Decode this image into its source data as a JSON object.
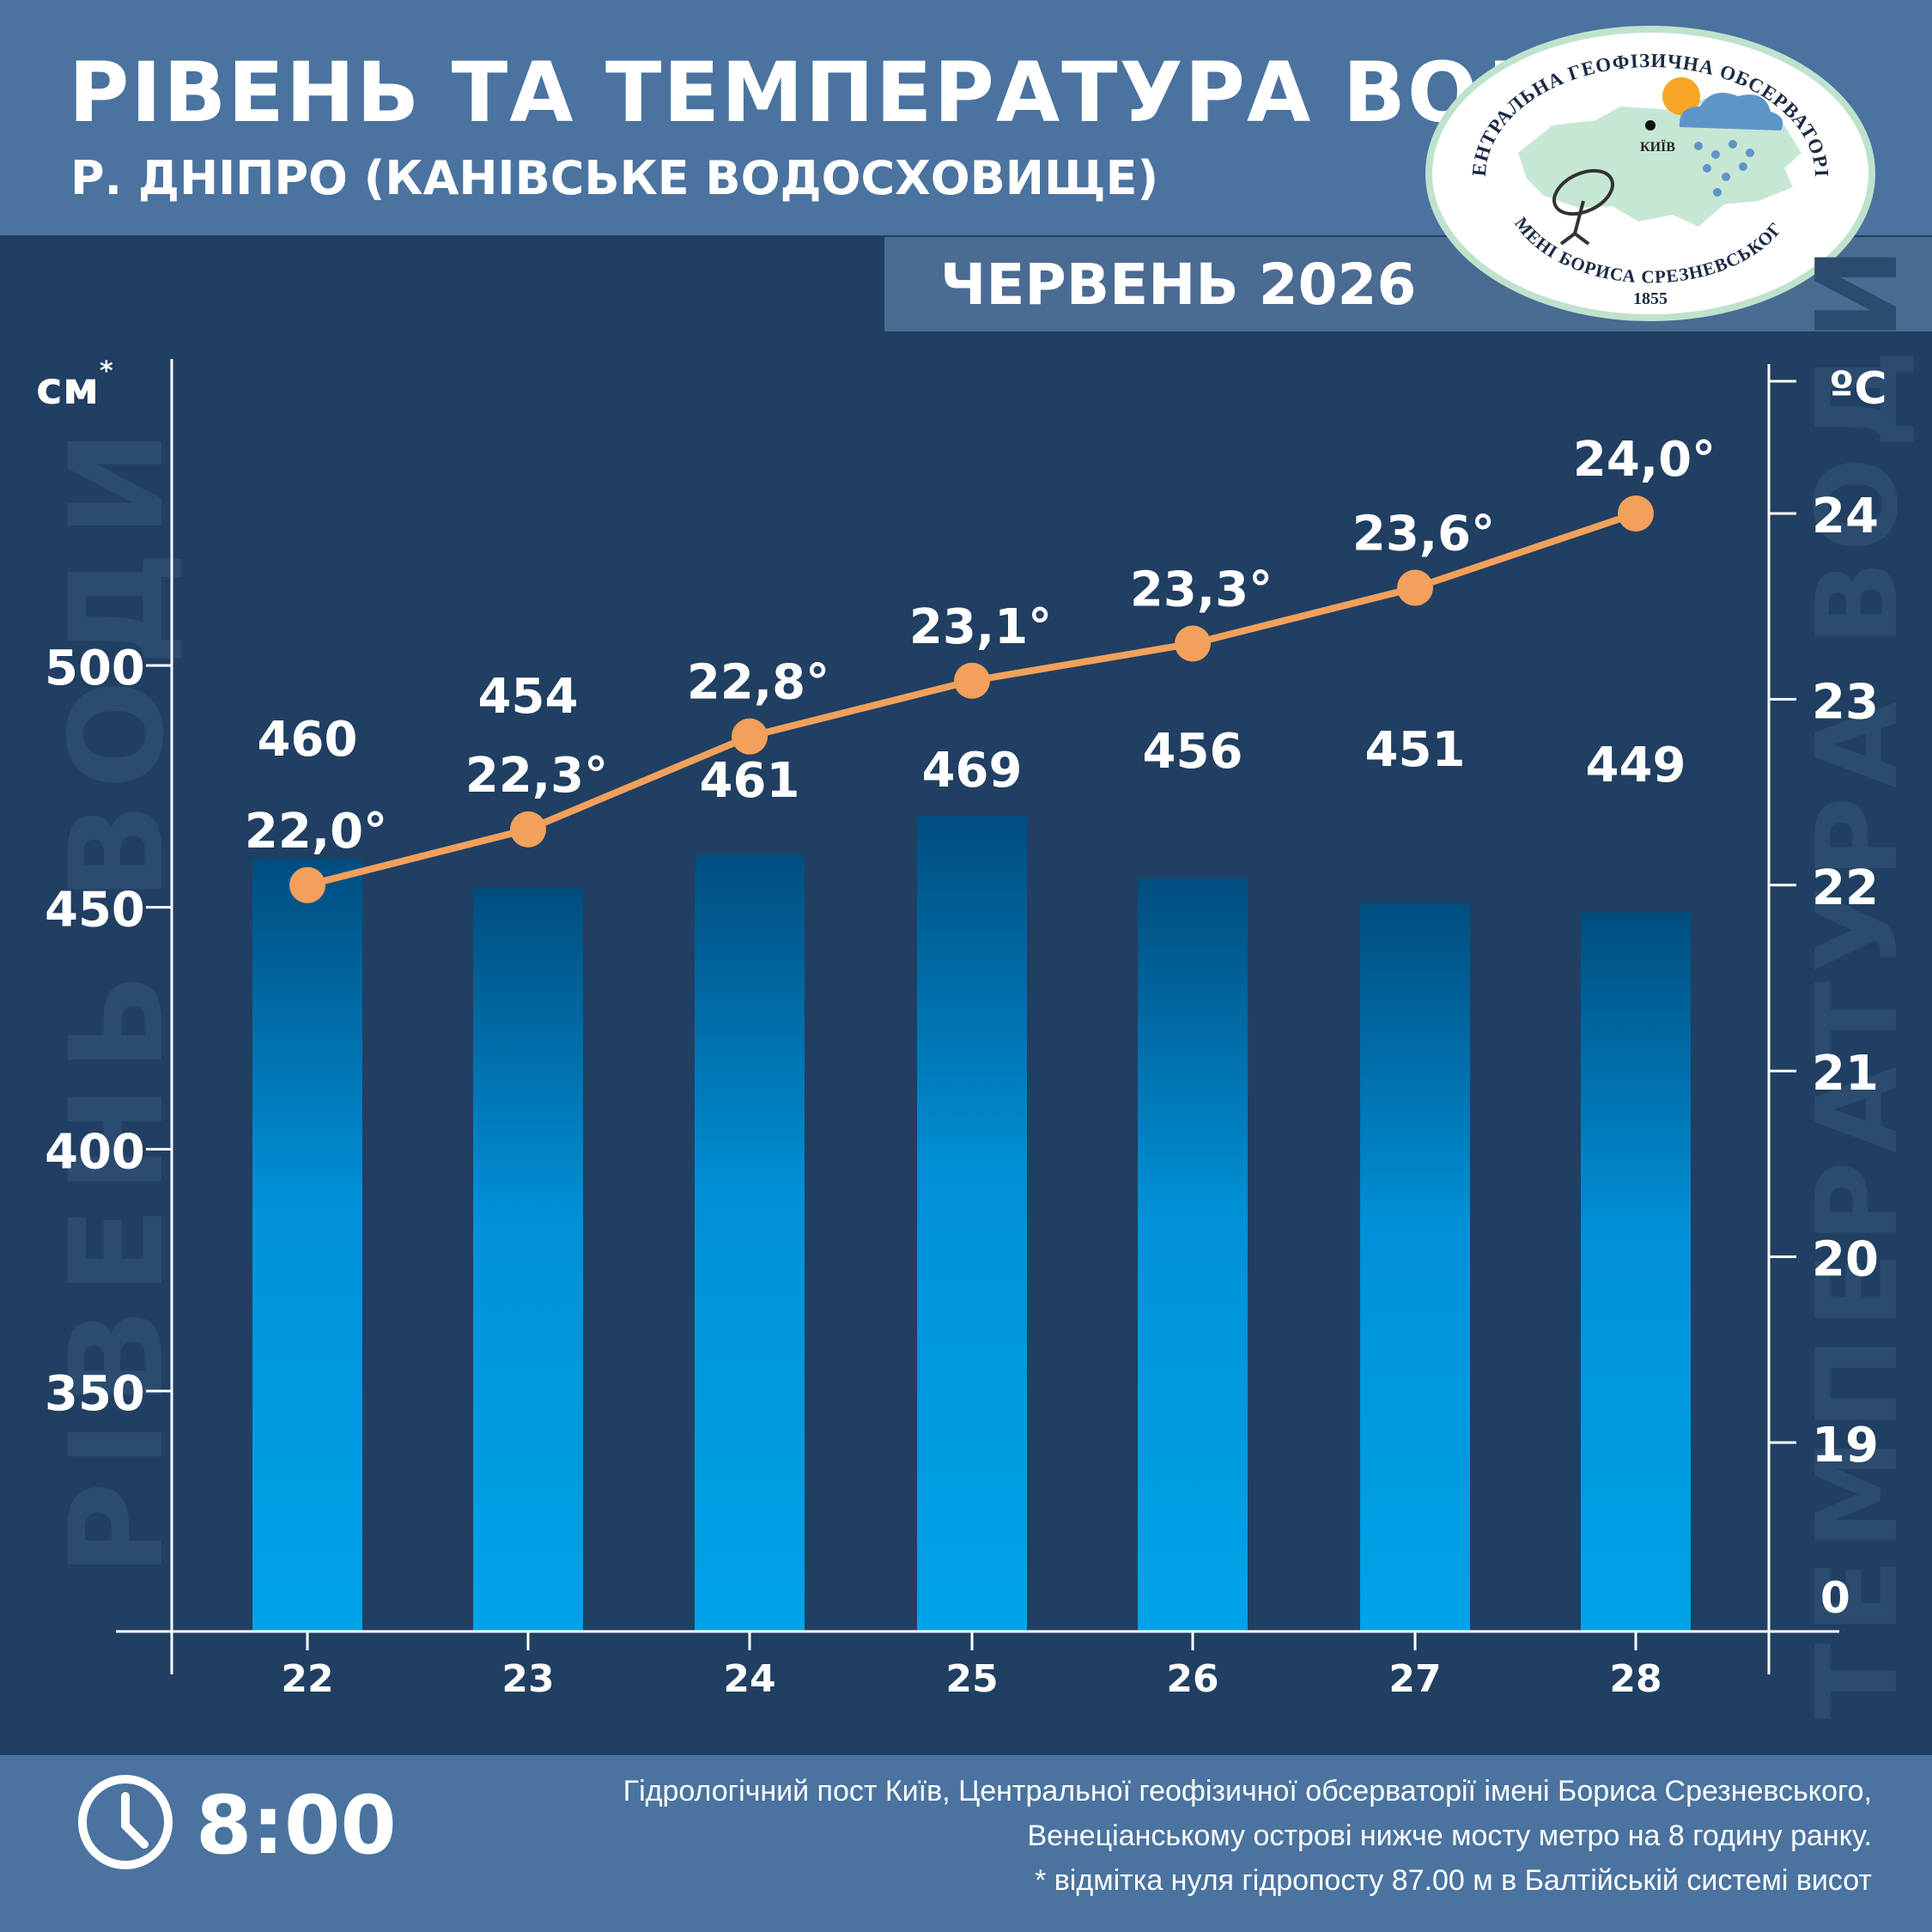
{
  "header": {
    "title": "РІВЕНЬ ТА ТЕМПЕРАТУРА ВОДИ",
    "subtitle": "Р. ДНІПРО (КАНІВСЬКЕ ВОДОСХОВИЩЕ)",
    "month": "ЧЕРВЕНЬ 2026"
  },
  "logo": {
    "text_top": "ЦЕНТРАЛЬНА ГЕОФІЗИЧНА ОБСЕРВАТОРІЯ",
    "text_bottom": "ІМЕНІ БОРИСА СРЕЗНЕВСЬКОГО",
    "year": "1855",
    "city": "КИЇВ"
  },
  "footer": {
    "time": "8:00",
    "note_lines": [
      "Гідрологічний пост Київ, Центральної геофізичної обсерваторії імені Бориса Срезневського,",
      "Венеціанському острові нижче мосту метро  на 8 годину ранку.",
      "* відмітка нуля гідропосту 87.00 м в Балтійській системі висот"
    ]
  },
  "chart_data": {
    "type": "bar+line",
    "categories": [
      "22",
      "23",
      "24",
      "25",
      "26",
      "27",
      "28"
    ],
    "series": [
      {
        "name": "РІВЕНЬ ВОДИ",
        "type": "bar",
        "axis": "left",
        "values": [
          460,
          454,
          461,
          469,
          456,
          451,
          449
        ],
        "labels": [
          "460",
          "454",
          "461",
          "469",
          "456",
          "451",
          "449"
        ]
      },
      {
        "name": "ТЕМПЕРАТУРА ВОДИ",
        "type": "line",
        "axis": "right",
        "values": [
          22.0,
          22.3,
          22.8,
          23.1,
          23.3,
          23.6,
          24.0
        ],
        "labels": [
          "22,0°",
          "22,3°",
          "22,8°",
          "23,1°",
          "23,3°",
          "23,6°",
          "24,0°"
        ]
      }
    ],
    "left_axis": {
      "unit": "см",
      "unit_mark": "*",
      "ticks": [
        350,
        400,
        450,
        500
      ],
      "tick_labels": [
        "350",
        "400",
        "450",
        "500"
      ],
      "range": [
        290,
        560
      ]
    },
    "right_axis": {
      "unit": "ºC",
      "ticks": [
        19,
        20,
        21,
        22,
        23,
        24
      ],
      "tick_labels": [
        "19",
        "20",
        "21",
        "22",
        "23",
        "24"
      ],
      "range": [
        18.5,
        24.6
      ],
      "baseline_label": "0"
    },
    "colors": {
      "bar_top": "#004d7e",
      "bar_bottom": "#00a3e8",
      "line": "#f2a05c",
      "background": "#203f62"
    }
  }
}
